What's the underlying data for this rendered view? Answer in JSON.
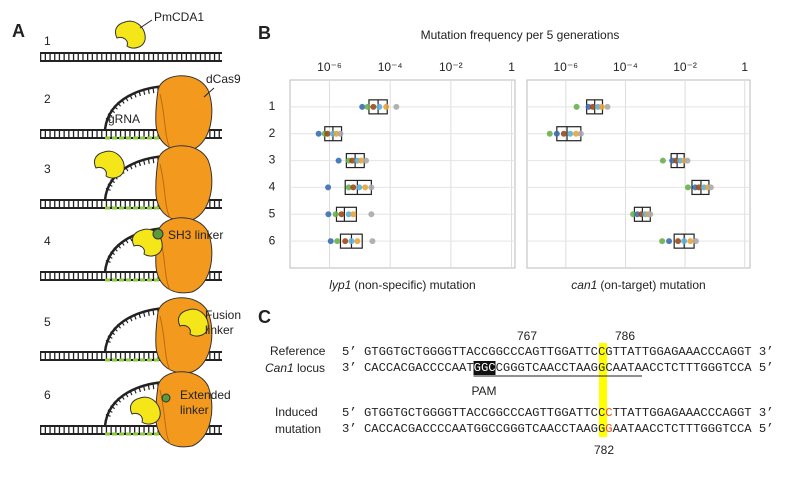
{
  "panel_a": {
    "label": "A",
    "steps": [
      "1",
      "2",
      "3",
      "4",
      "5",
      "6"
    ],
    "pmcda1": "PmCDA1",
    "dcas9": "dCas9",
    "grna": "gRNA",
    "sh3_linker": "SH3 linker",
    "fusion_linker": [
      "Fusion",
      "linker"
    ],
    "extended_linker": [
      "Extended",
      "linker"
    ]
  },
  "panel_b": {
    "label": "B",
    "title": "Mutation frequency per 5 generations"
  },
  "chart_data": [
    {
      "type": "box",
      "categories": [
        "1",
        "2",
        "3",
        "4",
        "5",
        "6"
      ],
      "xlabel_gene": "lyp1",
      "xlabel": "(non-specific) mutation",
      "xscale": "log",
      "xlim": [
        5e-08,
        1.3
      ],
      "xticks": [
        {
          "value": 1e-06,
          "label": "10⁻⁶"
        },
        {
          "value": 0.0001,
          "label": "10⁻⁴"
        },
        {
          "value": 0.01,
          "label": "10⁻²"
        },
        1
      ],
      "grid": true,
      "point_colors": [
        "#3a6fb0",
        "#6ab04c",
        "#9c4a1a",
        "#5ab0d8",
        "#e8a33a",
        "#aaaaaa"
      ],
      "boxes": [
        {
          "q1": 2e-05,
          "median": 4e-05,
          "q3": 8e-05
        },
        {
          "q1": 7e-07,
          "median": 1.3e-06,
          "q3": 2.5e-06
        },
        {
          "q1": 3.6e-06,
          "median": 7e-06,
          "q3": 1.4e-05
        },
        {
          "q1": 3.3e-06,
          "median": 8.3e-06,
          "q3": 2.4e-05
        },
        {
          "q1": 1.7e-06,
          "median": 3.1e-06,
          "q3": 7.7e-06
        },
        {
          "q1": 2.3e-06,
          "median": 5.3e-06,
          "q3": 1.2e-05
        }
      ],
      "points": [
        [
          1.2e-05,
          1.8e-05,
          2.8e-05,
          4.4e-05,
          7.4e-05,
          0.00016
        ],
        [
          4.4e-07,
          7e-07,
          8.6e-07,
          1.3e-06,
          1.7e-06,
          2.3e-06
        ],
        [
          2e-06,
          4.3e-06,
          5.6e-06,
          8.3e-06,
          1.1e-05,
          1.6e-05
        ],
        [
          9e-07,
          4.3e-06,
          6.1e-06,
          9.6e-06,
          1.5e-05,
          2.4e-05
        ],
        [
          9.2e-07,
          1.6e-06,
          2.5e-06,
          4.3e-06,
          6.1e-06,
          2.4e-05
        ],
        [
          1.1e-06,
          1.8e-06,
          3.3e-06,
          5.3e-06,
          8.3e-06,
          2.6e-05
        ]
      ]
    },
    {
      "type": "box",
      "xlabel_gene": "can1",
      "xlabel": "(on-target) mutation",
      "xscale": "log",
      "xlim": [
        5e-08,
        1.5
      ],
      "xticks": [
        {
          "value": 1e-06,
          "label": "10⁻⁶"
        },
        {
          "value": 0.0001,
          "label": "10⁻⁴"
        },
        {
          "value": 0.01,
          "label": "10⁻²"
        },
        1
      ],
      "grid": true,
      "point_colors": [
        "#6ab04c",
        "#3a6fb0",
        "#9c4a1a",
        "#5ab0d8",
        "#e8a33a",
        "#aaaaaa"
      ],
      "boxes": [
        {
          "q1": 5e-06,
          "median": 9.3e-06,
          "q3": 1.7e-05
        },
        {
          "q1": 5e-07,
          "median": 1.1e-06,
          "q3": 3.2e-06
        },
        {
          "q1": 0.0034,
          "median": 0.0054,
          "q3": 0.0093
        },
        {
          "q1": 0.017,
          "median": 0.034,
          "q3": 0.063
        },
        {
          "q1": 0.0002,
          "median": 0.00037,
          "q3": 0.00068
        },
        {
          "q1": 0.0043,
          "median": 0.0093,
          "q3": 0.02
        }
      ],
      "points": [
        [
          2.3e-06,
          5.8e-06,
          8e-06,
          1.2e-05,
          1.6e-05,
          2.5e-05
        ],
        [
          2.9e-07,
          5e-07,
          8.6e-07,
          1.4e-06,
          2.2e-06,
          3.2e-06
        ],
        [
          0.0018,
          0.0037,
          0.005,
          0.0068,
          0.0093,
          0.012
        ],
        [
          0.0125,
          0.022,
          0.029,
          0.043,
          0.058,
          0.073
        ],
        [
          0.00018,
          0.00025,
          0.00034,
          0.00046,
          0.00058,
          0.00068
        ],
        [
          0.0017,
          0.0029,
          0.0058,
          0.0093,
          0.015,
          0.023
        ]
      ]
    }
  ],
  "panel_c": {
    "label": "C",
    "reference": "Reference",
    "locus_gene": "Can1",
    "locus": "locus",
    "induced": [
      "Induced",
      "mutation"
    ],
    "positions": [
      "767",
      "786",
      "782"
    ],
    "pam": "PAM",
    "ref_top": "5’ GTGGTGCTGGGGTTACCGGCCCAGTTGGATTCCGTTATTGGAGAAACCCAGGT 3’",
    "ref_bottom": [
      "3’ CACCACGACCCCAAT",
      "GGC",
      "CGGGTCAACCTAAGGCAATA",
      "ACCTCTTTGGGTCCA 5’"
    ],
    "ind_top": [
      "5’ GTGGTGCTGGGGTTACCGGCCCAGTTGGATTCC",
      "C",
      "TTATTGGAGAAACCCAGGT 3’"
    ],
    "ind_bottom": [
      "3’ CACCACGACCCCAATGGCCGGGTCAACCTAAGG",
      "G",
      "AATAACCTCTTTGGGTCCA 5’"
    ]
  }
}
